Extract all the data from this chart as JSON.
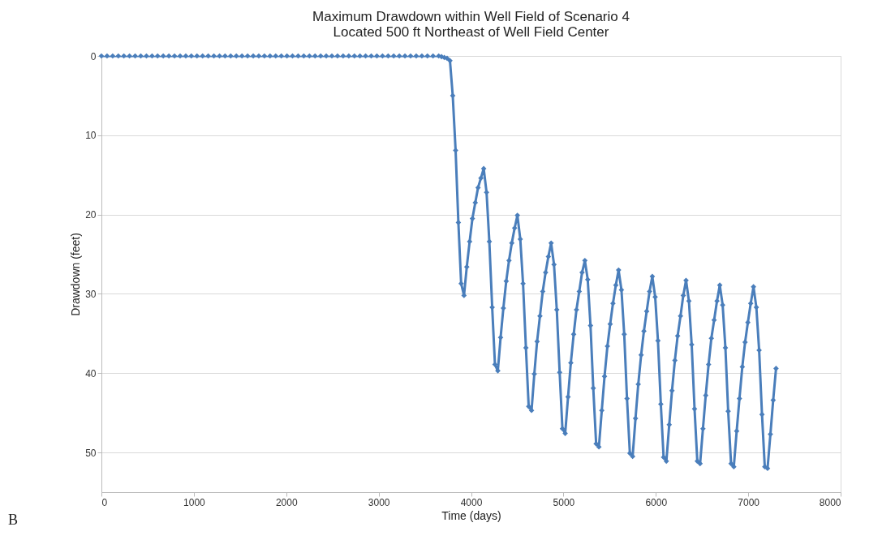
{
  "chart_data": {
    "type": "line",
    "title": "Maximum Drawdown within Well Field of Scenario 4",
    "subtitle": "Located 500 ft Northeast of Well Field Center",
    "xlabel": "Time (days)",
    "ylabel": "Drawdown (feet)",
    "annotations": [
      "B"
    ],
    "xlim": [
      0,
      8000
    ],
    "xticks": [
      0,
      1000,
      2000,
      3000,
      4000,
      5000,
      6000,
      7000,
      8000
    ],
    "ylim": [
      55,
      0
    ],
    "yticks": [
      0,
      10,
      20,
      30,
      40,
      50
    ],
    "grid": "y",
    "marker": "diamond",
    "line_style": "solid",
    "series": [
      {
        "color": "#4a7ebb",
        "x": [
          0,
          61,
          122,
          183,
          243,
          304,
          365,
          426,
          487,
          548,
          608,
          669,
          730,
          791,
          852,
          913,
          973,
          1034,
          1095,
          1156,
          1217,
          1278,
          1338,
          1399,
          1460,
          1521,
          1582,
          1643,
          1703,
          1764,
          1825,
          1886,
          1947,
          2008,
          2068,
          2129,
          2190,
          2251,
          2312,
          2373,
          2433,
          2494,
          2555,
          2616,
          2677,
          2738,
          2798,
          2859,
          2920,
          2981,
          3042,
          3103,
          3163,
          3224,
          3285,
          3346,
          3407,
          3468,
          3528,
          3589,
          3650,
          3681,
          3711,
          3741,
          3772,
          3802,
          3833,
          3863,
          3893,
          3924,
          3954,
          3985,
          4015,
          4046,
          4076,
          4107,
          4137,
          4168,
          4198,
          4229,
          4259,
          4290,
          4320,
          4350,
          4381,
          4411,
          4441,
          4472,
          4502,
          4533,
          4563,
          4594,
          4624,
          4655,
          4685,
          4715,
          4746,
          4776,
          4807,
          4837,
          4867,
          4898,
          4928,
          4959,
          4989,
          5019,
          5050,
          5080,
          5111,
          5141,
          5171,
          5202,
          5232,
          5263,
          5293,
          5323,
          5354,
          5384,
          5415,
          5445,
          5476,
          5506,
          5536,
          5567,
          5597,
          5628,
          5658,
          5688,
          5719,
          5749,
          5780,
          5810,
          5841,
          5871,
          5901,
          5932,
          5962,
          5993,
          6023,
          6054,
          6084,
          6114,
          6145,
          6175,
          6206,
          6236,
          6267,
          6297,
          6327,
          6358,
          6388,
          6419,
          6449,
          6479,
          6510,
          6540,
          6571,
          6601,
          6631,
          6662,
          6692,
          6723,
          6753,
          6783,
          6814,
          6844,
          6875,
          6905,
          6936,
          6966,
          6996,
          7027,
          7057,
          7088,
          7118,
          7149,
          7179,
          7209,
          7240,
          7270,
          7301
        ],
        "values": [
          0,
          0,
          0,
          0,
          0,
          0,
          0,
          0,
          0,
          0,
          0,
          0,
          0,
          0,
          0,
          0,
          0,
          0,
          0,
          0,
          0,
          0,
          0,
          0,
          0,
          0,
          0,
          0,
          0,
          0,
          0,
          0,
          0,
          0,
          0,
          0,
          0,
          0,
          0,
          0,
          0,
          0,
          0,
          0,
          0,
          0,
          0,
          0,
          0,
          0,
          0,
          0,
          0,
          0,
          0,
          0,
          0,
          0,
          0,
          0,
          0,
          0.1,
          0.2,
          0.3,
          0.6,
          5.0,
          11.9,
          21.0,
          28.7,
          30.2,
          26.6,
          23.4,
          20.5,
          18.5,
          16.6,
          15.4,
          14.2,
          17.2,
          23.4,
          31.7,
          38.9,
          39.7,
          35.5,
          31.8,
          28.4,
          25.8,
          23.6,
          21.7,
          20.1,
          23.1,
          28.7,
          36.8,
          44.2,
          44.7,
          40.1,
          36.0,
          32.8,
          29.7,
          27.3,
          25.3,
          23.6,
          26.3,
          32.0,
          39.9,
          47.0,
          47.6,
          43.0,
          38.7,
          35.1,
          32.0,
          29.7,
          27.3,
          25.8,
          28.2,
          34.0,
          41.9,
          48.9,
          49.3,
          44.7,
          40.4,
          36.6,
          33.8,
          31.2,
          28.9,
          27.0,
          29.5,
          35.1,
          43.2,
          50.1,
          50.5,
          45.7,
          41.4,
          37.7,
          34.7,
          32.2,
          29.7,
          27.8,
          30.4,
          35.9,
          43.9,
          50.6,
          51.1,
          46.5,
          42.2,
          38.4,
          35.3,
          32.8,
          30.2,
          28.3,
          30.9,
          36.4,
          44.5,
          51.1,
          51.4,
          47.0,
          42.8,
          38.9,
          35.6,
          33.3,
          30.9,
          28.9,
          31.4,
          36.8,
          44.8,
          51.4,
          51.8,
          47.3,
          43.2,
          39.2,
          36.1,
          33.6,
          31.2,
          29.1,
          31.7,
          37.1,
          45.2,
          51.8,
          52.0,
          47.7,
          43.4,
          39.4
        ]
      }
    ]
  }
}
